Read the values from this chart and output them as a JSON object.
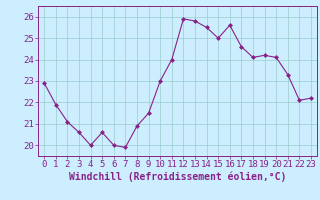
{
  "x": [
    0,
    1,
    2,
    3,
    4,
    5,
    6,
    7,
    8,
    9,
    10,
    11,
    12,
    13,
    14,
    15,
    16,
    17,
    18,
    19,
    20,
    21,
    22,
    23
  ],
  "y": [
    22.9,
    21.9,
    21.1,
    20.6,
    20.0,
    20.6,
    20.0,
    19.9,
    20.9,
    21.5,
    23.0,
    24.0,
    25.9,
    25.8,
    25.5,
    25.0,
    25.6,
    24.6,
    24.1,
    24.2,
    24.1,
    23.3,
    22.1,
    22.2
  ],
  "line_color": "#882288",
  "marker_color": "#882288",
  "bg_color": "#cceeff",
  "grid_color": "#99cccc",
  "xlabel": "Windchill (Refroidissement éolien,°C)",
  "xlabel_color": "#882288",
  "ylim": [
    19.5,
    26.5
  ],
  "yticks": [
    20,
    21,
    22,
    23,
    24,
    25,
    26
  ],
  "xticks": [
    0,
    1,
    2,
    3,
    4,
    5,
    6,
    7,
    8,
    9,
    10,
    11,
    12,
    13,
    14,
    15,
    16,
    17,
    18,
    19,
    20,
    21,
    22,
    23
  ],
  "tick_color": "#882288",
  "font_size": 6.5,
  "label_font_size": 7.0
}
